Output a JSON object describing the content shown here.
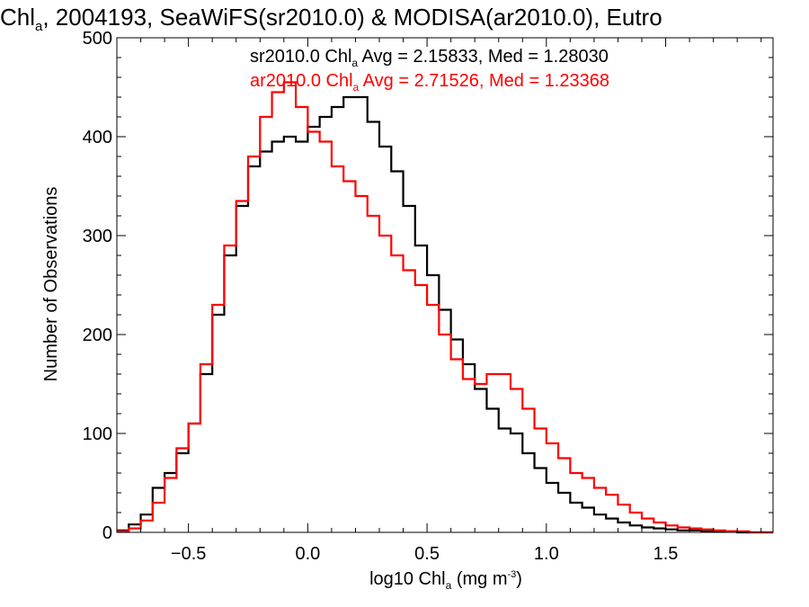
{
  "chart_data": {
    "type": "line",
    "title": {
      "pre": "Chl",
      "sub": "a",
      "post": ", 2004193, SeaWiFS(sr2010.0) & MODISA(ar2010.0), Eutro"
    },
    "xlabel": {
      "pre": "log10 Chl",
      "sub": "a",
      "mid": " (mg m",
      "sup": "-3",
      "post": ")"
    },
    "ylabel": "Number of Observations",
    "xlim": [
      -0.8,
      1.95
    ],
    "ylim": [
      0,
      500
    ],
    "xticks": [
      -0.5,
      0.0,
      0.5,
      1.0,
      1.5
    ],
    "xtick_labels": [
      "−0.5",
      "0.0",
      "0.5",
      "1.0",
      "1.5"
    ],
    "yticks": [
      0,
      100,
      200,
      300,
      400,
      500
    ],
    "ytick_labels": [
      "0",
      "100",
      "200",
      "300",
      "400",
      "500"
    ],
    "grid": false,
    "legend_position": "top-right",
    "series": [
      {
        "name": "sr2010.0",
        "color": "#000000",
        "stats": {
          "pre": "sr2010.0 Chl",
          "sub": "a",
          "post": " Avg = 2.15833, Med = 1.28030"
        },
        "x": [
          -0.8,
          -0.75,
          -0.7,
          -0.65,
          -0.6,
          -0.55,
          -0.5,
          -0.45,
          -0.4,
          -0.35,
          -0.3,
          -0.25,
          -0.2,
          -0.15,
          -0.1,
          -0.05,
          0.0,
          0.05,
          0.1,
          0.15,
          0.2,
          0.25,
          0.3,
          0.35,
          0.4,
          0.45,
          0.5,
          0.55,
          0.6,
          0.65,
          0.7,
          0.75,
          0.8,
          0.85,
          0.9,
          0.95,
          1.0,
          1.05,
          1.1,
          1.15,
          1.2,
          1.25,
          1.3,
          1.35,
          1.4,
          1.45,
          1.5,
          1.55,
          1.6,
          1.65,
          1.7,
          1.75,
          1.8,
          1.85,
          1.9
        ],
        "values": [
          2,
          8,
          18,
          45,
          60,
          80,
          110,
          160,
          220,
          280,
          330,
          370,
          385,
          395,
          400,
          395,
          410,
          420,
          430,
          440,
          440,
          415,
          390,
          365,
          330,
          290,
          260,
          225,
          195,
          170,
          145,
          125,
          105,
          100,
          80,
          65,
          50,
          40,
          30,
          25,
          18,
          14,
          10,
          7,
          5,
          4,
          3,
          2,
          2,
          1,
          1,
          1,
          0,
          0,
          0
        ]
      },
      {
        "name": "ar2010.0",
        "color": "#ff0000",
        "stats": {
          "pre": "ar2010.0 Chl",
          "sub": "a",
          "post": " Avg = 2.71526, Med = 1.23368"
        },
        "x": [
          -0.8,
          -0.75,
          -0.7,
          -0.65,
          -0.6,
          -0.55,
          -0.5,
          -0.45,
          -0.4,
          -0.35,
          -0.3,
          -0.25,
          -0.2,
          -0.15,
          -0.1,
          -0.05,
          0.0,
          0.05,
          0.1,
          0.15,
          0.2,
          0.25,
          0.3,
          0.35,
          0.4,
          0.45,
          0.5,
          0.55,
          0.6,
          0.65,
          0.7,
          0.75,
          0.8,
          0.85,
          0.9,
          0.95,
          1.0,
          1.05,
          1.1,
          1.15,
          1.2,
          1.25,
          1.3,
          1.35,
          1.4,
          1.45,
          1.5,
          1.55,
          1.6,
          1.65,
          1.7,
          1.75,
          1.8,
          1.85,
          1.9
        ],
        "values": [
          1,
          4,
          12,
          30,
          55,
          85,
          110,
          170,
          230,
          290,
          335,
          380,
          420,
          445,
          455,
          430,
          405,
          395,
          370,
          355,
          340,
          320,
          300,
          280,
          265,
          250,
          230,
          200,
          175,
          155,
          150,
          160,
          160,
          145,
          125,
          105,
          90,
          75,
          60,
          55,
          45,
          38,
          28,
          20,
          14,
          10,
          7,
          5,
          4,
          3,
          2,
          1,
          1,
          0,
          0
        ]
      }
    ]
  }
}
